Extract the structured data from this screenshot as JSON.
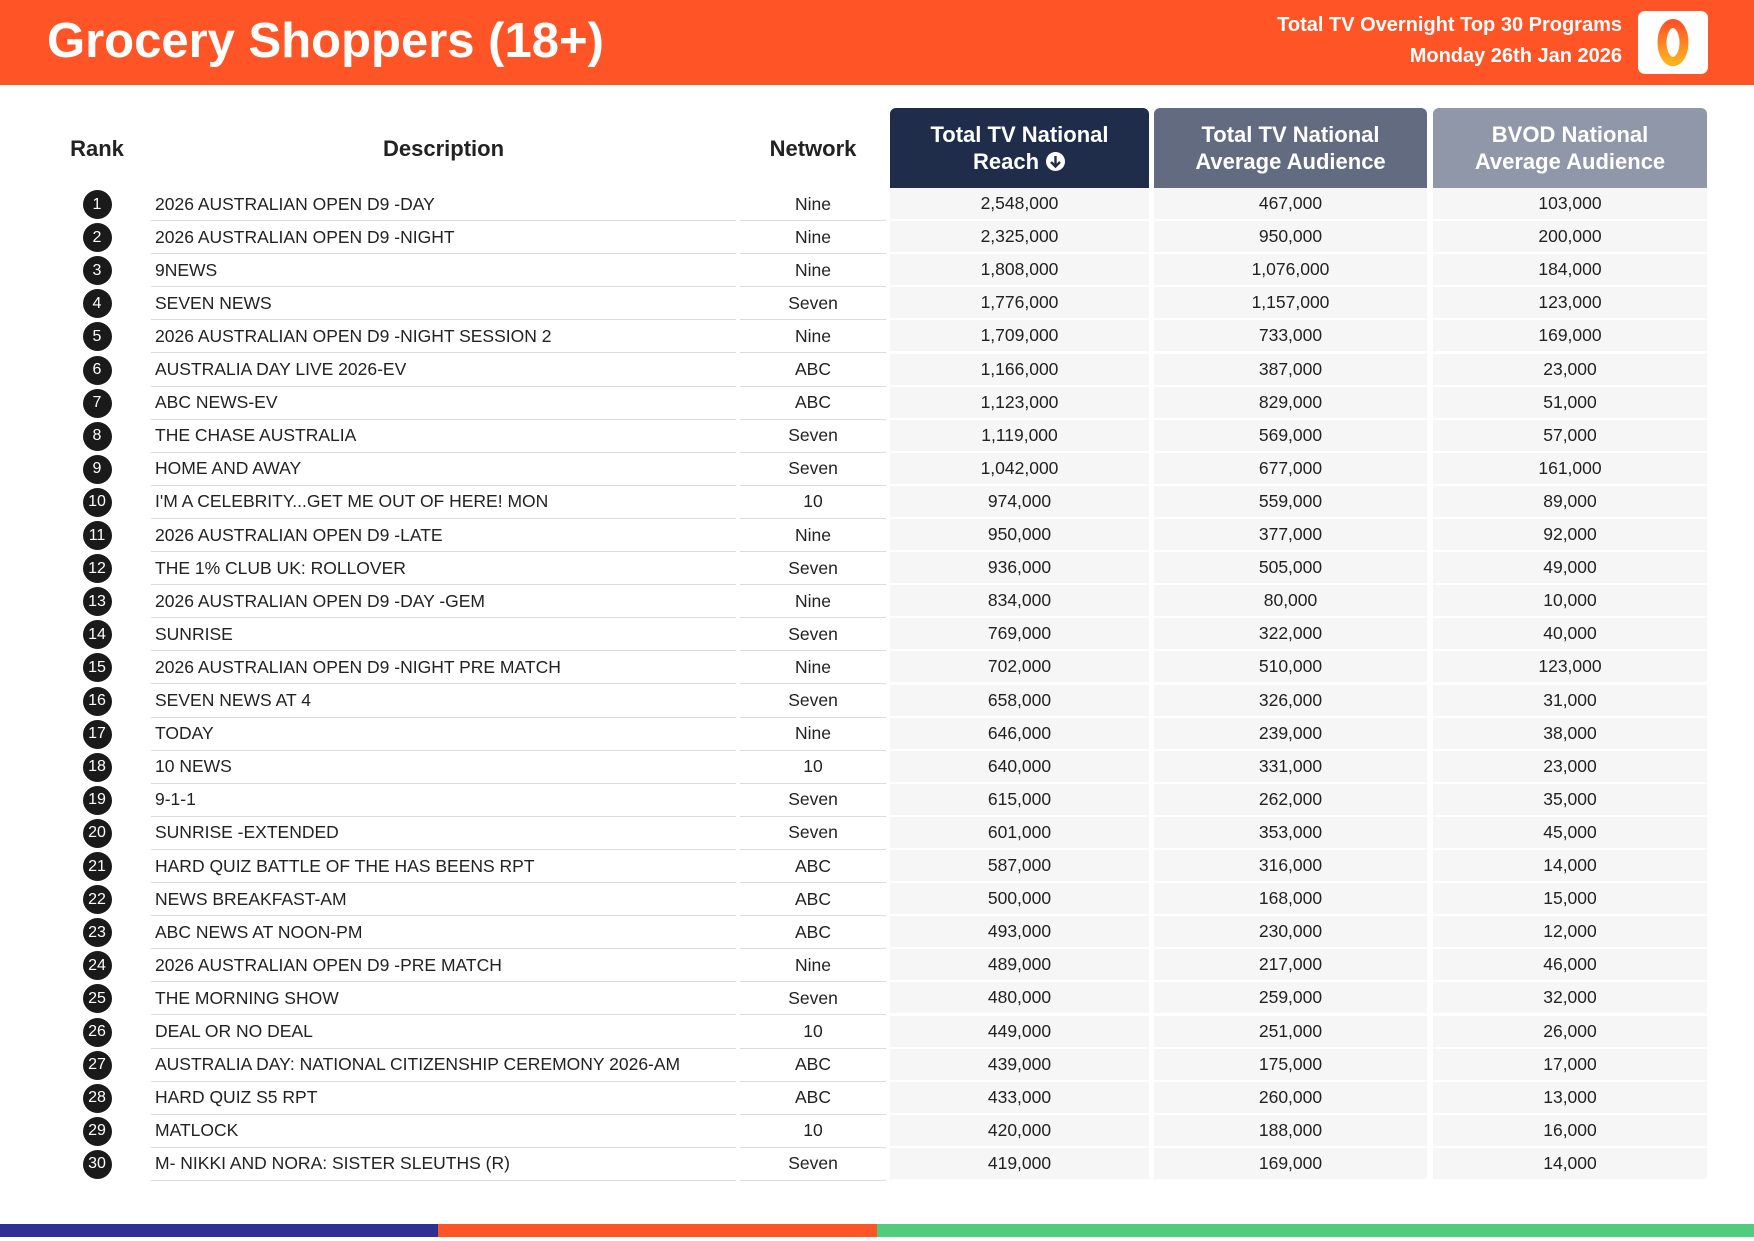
{
  "header": {
    "title": "Grocery Shoppers (18+)",
    "subtitle": [
      "Total TV Overnight Top 30 Programs",
      "Monday 26th Jan 2026"
    ]
  },
  "table": {
    "columns": [
      "Rank",
      "Description",
      "Network",
      "Total TV National Reach",
      "Total TV National Average Audience",
      "BVOD National Average Audience"
    ],
    "rows": [
      [
        "1",
        "2026 AUSTRALIAN OPEN D9 -DAY",
        "Nine",
        "2,548,000",
        "467,000",
        "103,000"
      ],
      [
        "2",
        "2026 AUSTRALIAN OPEN D9 -NIGHT",
        "Nine",
        "2,325,000",
        "950,000",
        "200,000"
      ],
      [
        "3",
        "9NEWS",
        "Nine",
        "1,808,000",
        "1,076,000",
        "184,000"
      ],
      [
        "4",
        "SEVEN NEWS",
        "Seven",
        "1,776,000",
        "1,157,000",
        "123,000"
      ],
      [
        "5",
        "2026 AUSTRALIAN OPEN D9 -NIGHT SESSION 2",
        "Nine",
        "1,709,000",
        "733,000",
        "169,000"
      ],
      [
        "6",
        "AUSTRALIA DAY LIVE 2026-EV",
        "ABC",
        "1,166,000",
        "387,000",
        "23,000"
      ],
      [
        "7",
        "ABC NEWS-EV",
        "ABC",
        "1,123,000",
        "829,000",
        "51,000"
      ],
      [
        "8",
        "THE CHASE AUSTRALIA",
        "Seven",
        "1,119,000",
        "569,000",
        "57,000"
      ],
      [
        "9",
        "HOME AND AWAY",
        "Seven",
        "1,042,000",
        "677,000",
        "161,000"
      ],
      [
        "10",
        "I'M A CELEBRITY...GET ME OUT OF HERE! MON",
        "10",
        "974,000",
        "559,000",
        "89,000"
      ],
      [
        "11",
        "2026 AUSTRALIAN OPEN D9 -LATE",
        "Nine",
        "950,000",
        "377,000",
        "92,000"
      ],
      [
        "12",
        "THE 1% CLUB UK: ROLLOVER",
        "Seven",
        "936,000",
        "505,000",
        "49,000"
      ],
      [
        "13",
        "2026 AUSTRALIAN OPEN D9 -DAY -GEM",
        "Nine",
        "834,000",
        "80,000",
        "10,000"
      ],
      [
        "14",
        "SUNRISE",
        "Seven",
        "769,000",
        "322,000",
        "40,000"
      ],
      [
        "15",
        "2026 AUSTRALIAN OPEN D9 -NIGHT PRE MATCH",
        "Nine",
        "702,000",
        "510,000",
        "123,000"
      ],
      [
        "16",
        "SEVEN NEWS AT 4",
        "Seven",
        "658,000",
        "326,000",
        "31,000"
      ],
      [
        "17",
        "TODAY",
        "Nine",
        "646,000",
        "239,000",
        "38,000"
      ],
      [
        "18",
        "10 NEWS",
        "10",
        "640,000",
        "331,000",
        "23,000"
      ],
      [
        "19",
        "9-1-1",
        "Seven",
        "615,000",
        "262,000",
        "35,000"
      ],
      [
        "20",
        "SUNRISE -EXTENDED",
        "Seven",
        "601,000",
        "353,000",
        "45,000"
      ],
      [
        "21",
        "HARD QUIZ BATTLE OF THE HAS BEENS RPT",
        "ABC",
        "587,000",
        "316,000",
        "14,000"
      ],
      [
        "22",
        "NEWS BREAKFAST-AM",
        "ABC",
        "500,000",
        "168,000",
        "15,000"
      ],
      [
        "23",
        "ABC NEWS AT NOON-PM",
        "ABC",
        "493,000",
        "230,000",
        "12,000"
      ],
      [
        "24",
        "2026 AUSTRALIAN OPEN D9 -PRE MATCH",
        "Nine",
        "489,000",
        "217,000",
        "46,000"
      ],
      [
        "25",
        "THE MORNING SHOW",
        "Seven",
        "480,000",
        "259,000",
        "32,000"
      ],
      [
        "26",
        "DEAL OR NO DEAL",
        "10",
        "449,000",
        "251,000",
        "26,000"
      ],
      [
        "27",
        "AUSTRALIA DAY: NATIONAL CITIZENSHIP CEREMONY 2026-AM",
        "ABC",
        "439,000",
        "175,000",
        "17,000"
      ],
      [
        "28",
        "HARD QUIZ S5 RPT",
        "ABC",
        "433,000",
        "260,000",
        "13,000"
      ],
      [
        "29",
        "MATLOCK",
        "10",
        "420,000",
        "188,000",
        "16,000"
      ],
      [
        "30",
        "M- NIKKI AND NORA: SISTER SLEUTHS (R)",
        "Seven",
        "419,000",
        "169,000",
        "14,000"
      ]
    ]
  }
}
